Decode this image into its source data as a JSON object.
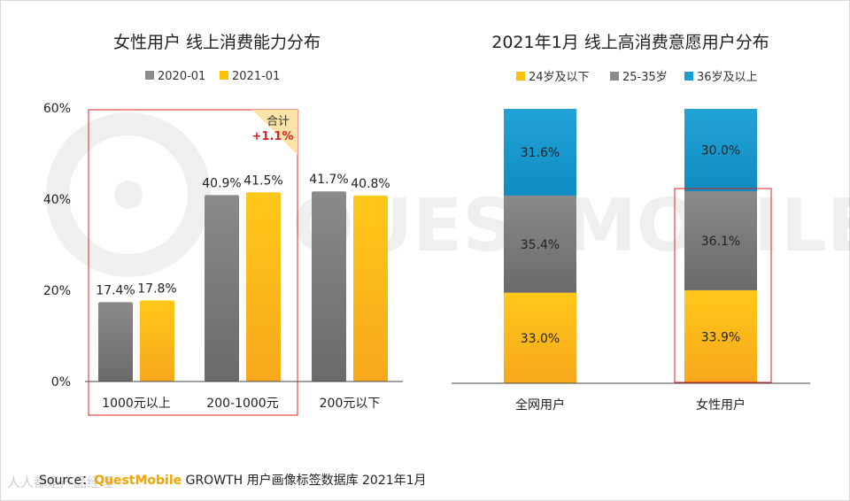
{
  "left_chart": {
    "title": "女性用户 线上消费能力分布",
    "legend": [
      {
        "label": "2020-01",
        "color": "#8c8c8c"
      },
      {
        "label": "2021-01",
        "color": "#ffc000"
      }
    ],
    "callout": {
      "label": "合计",
      "value": "+1.1%"
    }
  },
  "right_chart": {
    "title": "2021年1月 线上高消费意愿用户分布",
    "legend": [
      {
        "label": "24岁及以下",
        "color": "#ffc000"
      },
      {
        "label": "25-35岁",
        "color": "#8c8c8c"
      },
      {
        "label": "36岁及以上",
        "color": "#1a9bd1"
      }
    ]
  },
  "chart_data": [
    {
      "type": "bar",
      "title": "女性用户 线上消费能力分布",
      "categories": [
        "1000元以上",
        "200-1000元",
        "200元以下"
      ],
      "series": [
        {
          "name": "2020-01",
          "values": [
            17.4,
            40.9,
            41.7
          ],
          "labels": [
            "17.4%",
            "40.9%",
            "41.7%"
          ]
        },
        {
          "name": "2021-01",
          "values": [
            17.8,
            41.5,
            40.8
          ],
          "labels": [
            "17.8%",
            "41.5%",
            "40.8%"
          ]
        }
      ],
      "yticks": [
        "0%",
        "20%",
        "40%",
        "60%"
      ],
      "ylim": [
        0,
        60
      ],
      "legend": "top-center"
    },
    {
      "type": "bar",
      "stacked": true,
      "title": "2021年1月 线上高消费意愿用户分布",
      "categories": [
        "全网用户",
        "女性用户"
      ],
      "series": [
        {
          "name": "24岁及以下",
          "values": [
            33.0,
            33.9
          ],
          "labels": [
            "33.0%",
            "33.9%"
          ]
        },
        {
          "name": "25-35岁",
          "values": [
            35.4,
            36.1
          ],
          "labels": [
            "35.4%",
            "36.1%"
          ]
        },
        {
          "name": "36岁及以上",
          "values": [
            31.6,
            30.0
          ],
          "labels": [
            "31.6%",
            "30.0%"
          ]
        }
      ],
      "ylim": [
        0,
        100
      ],
      "legend": "top-center"
    }
  ],
  "source": {
    "prefix": "Source：",
    "brand": "QuestMobile",
    "text": " GROWTH 用户画像标签数据库 2021年1月"
  },
  "watermark": {
    "corner": "人人都是产品经理"
  }
}
